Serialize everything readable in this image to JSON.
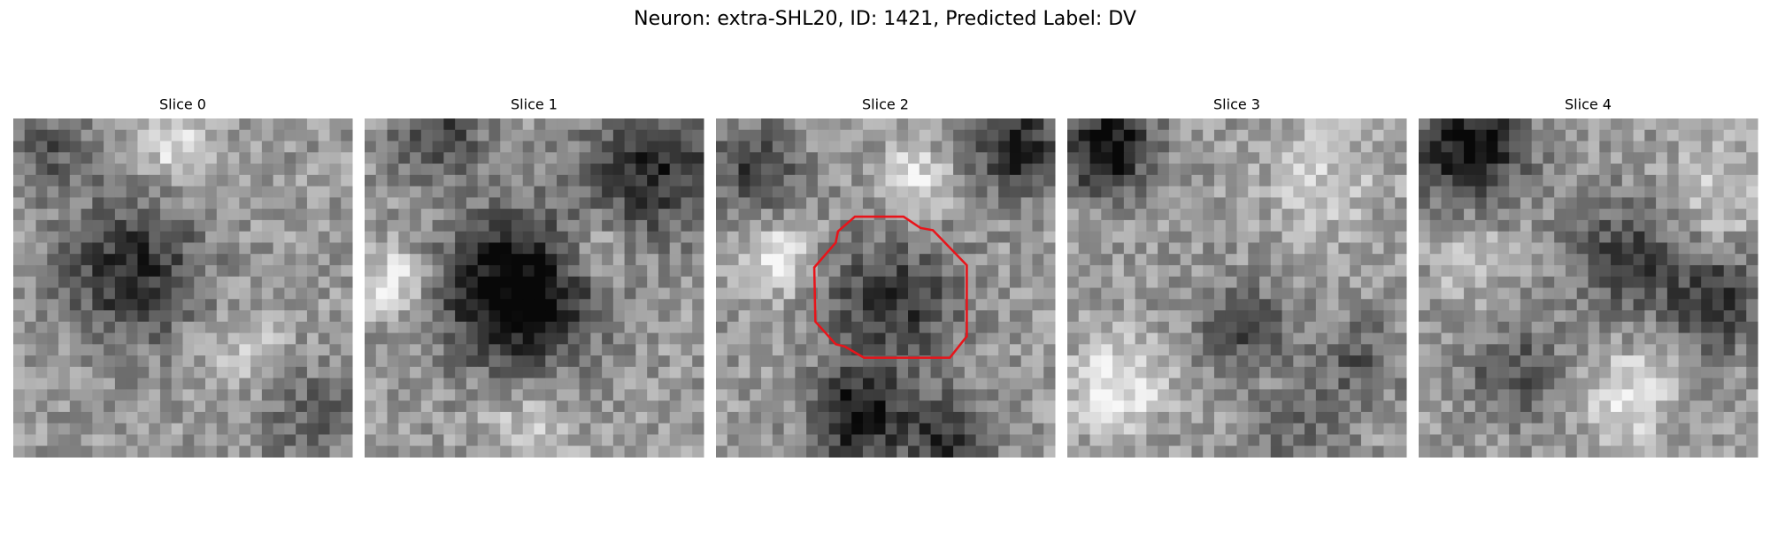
{
  "title": "Neuron: extra-SHL20, ID: 1421, Predicted Label: DV",
  "panels": [
    {
      "title": "Slice 0"
    },
    {
      "title": "Slice 1"
    },
    {
      "title": "Slice 2"
    },
    {
      "title": "Slice 3"
    },
    {
      "title": "Slice 4"
    }
  ]
}
